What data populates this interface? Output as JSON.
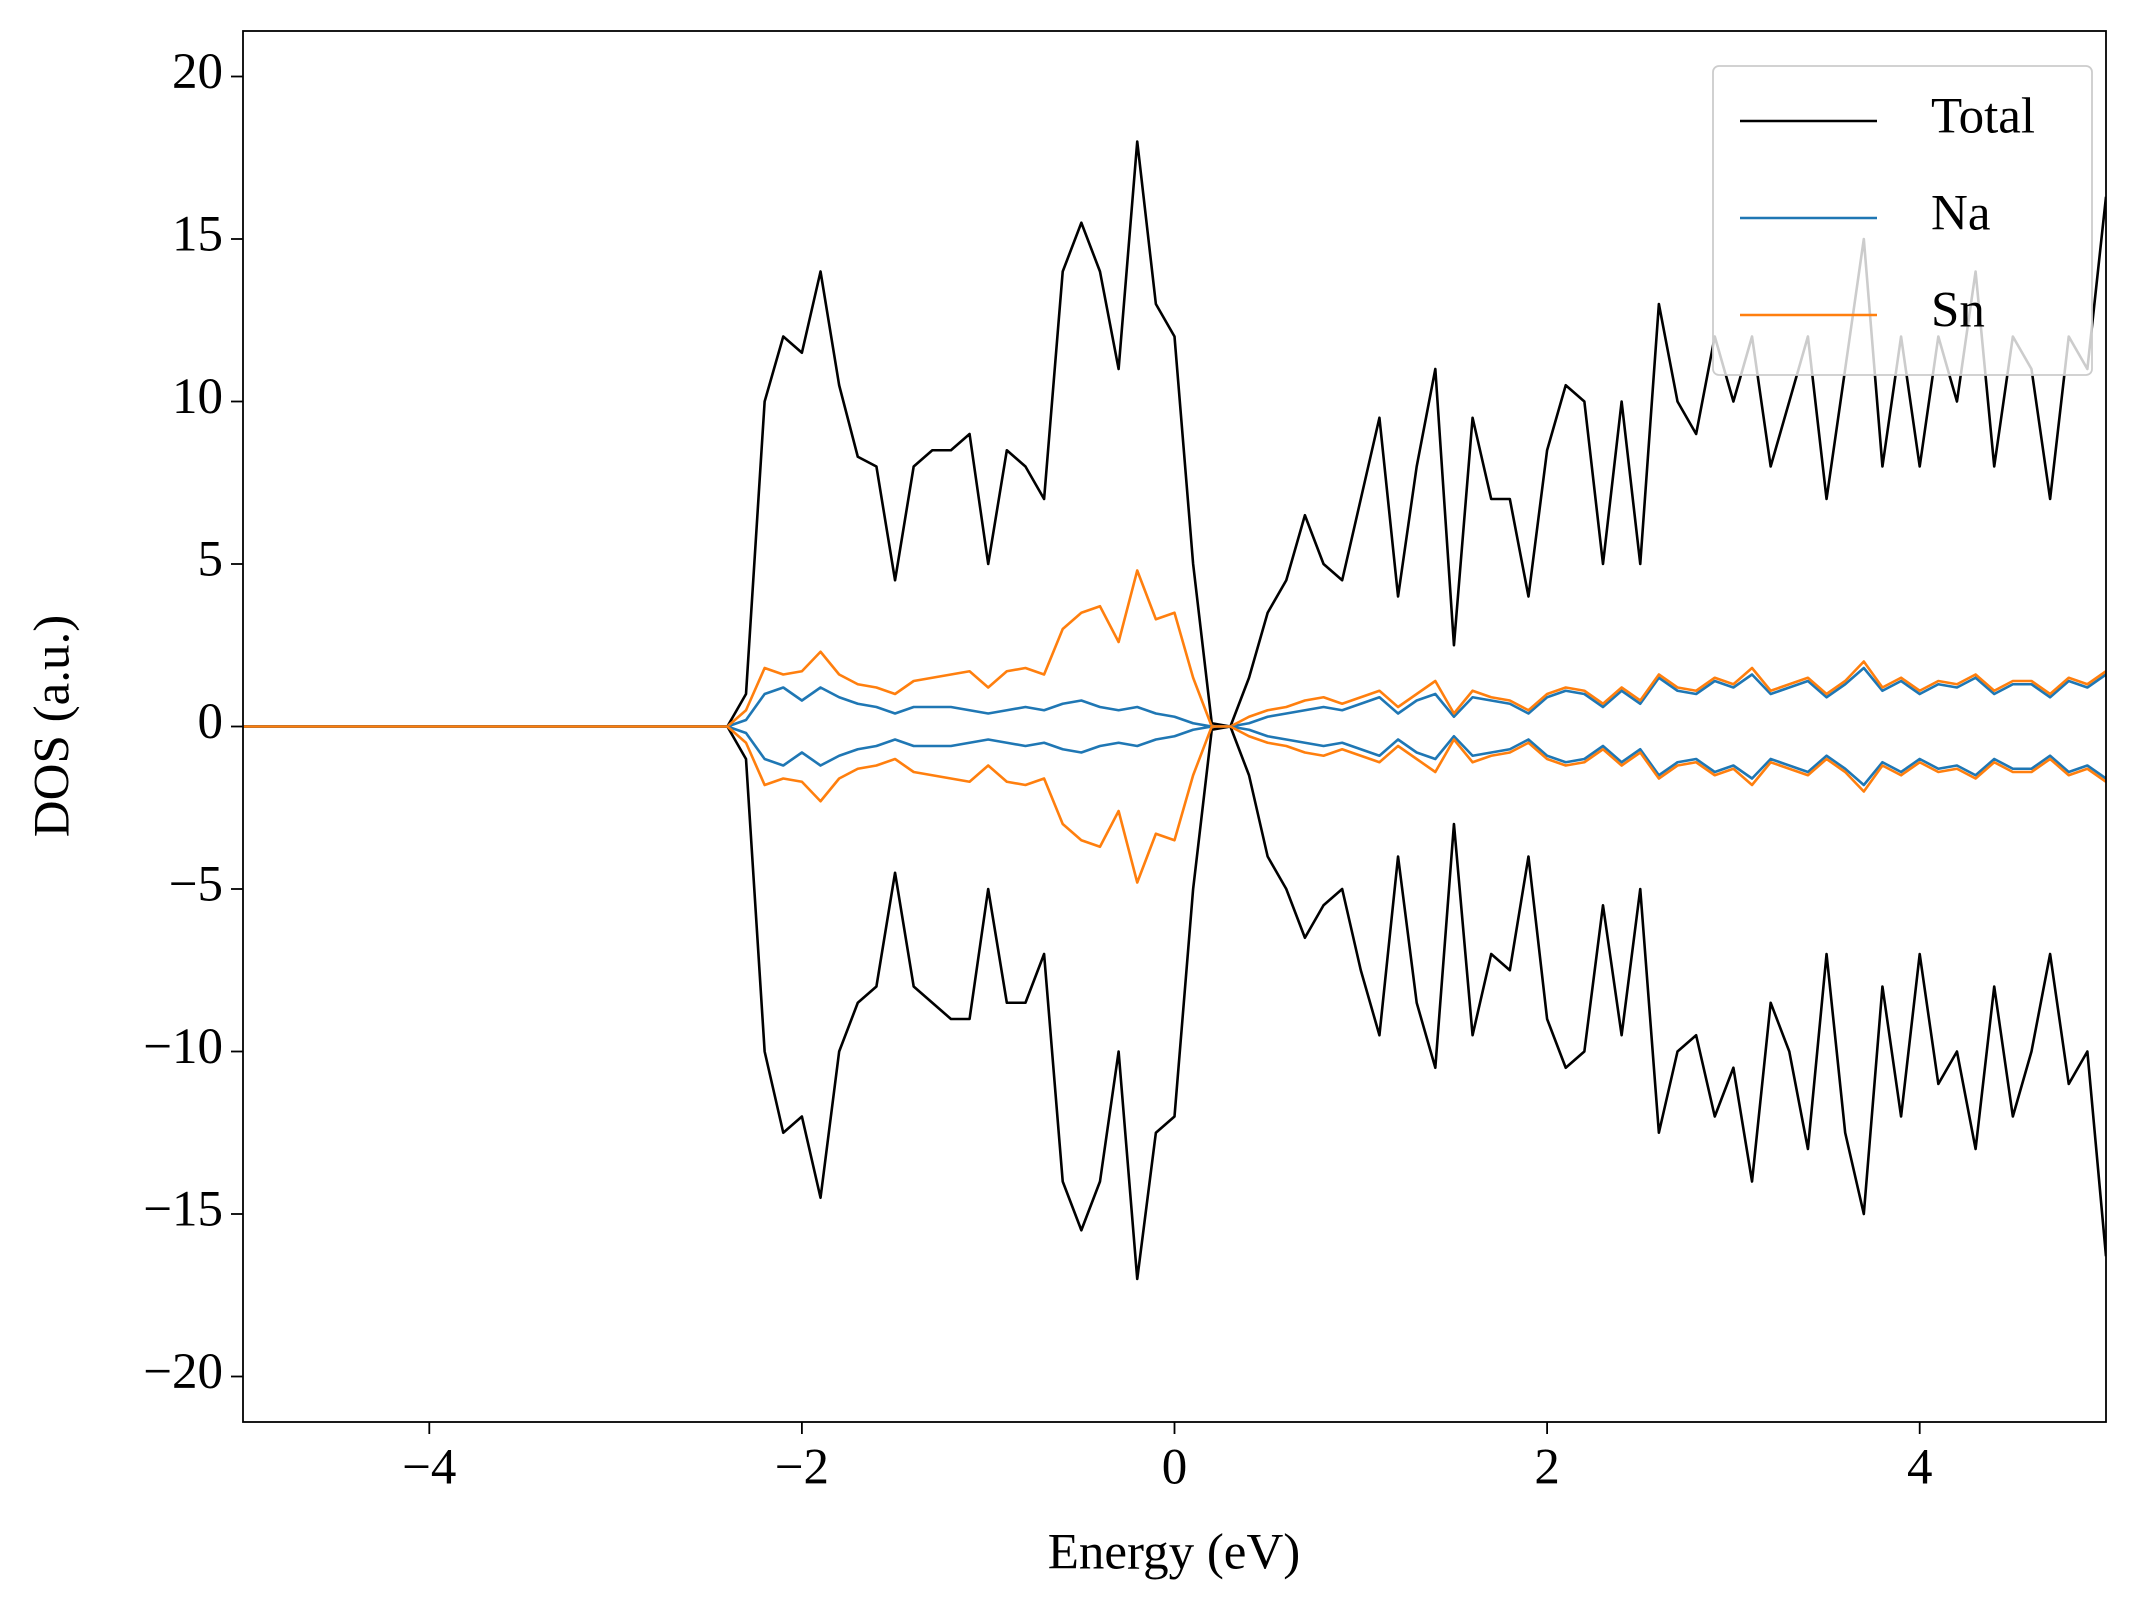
{
  "chart_data": {
    "type": "line",
    "x_label": "Energy (eV)",
    "y_label": "DOS (a.u.)",
    "xlim": [
      -5,
      5
    ],
    "ylim": [
      -21.4,
      21.4
    ],
    "xticks": [
      {
        "value": -4,
        "label": "−4"
      },
      {
        "value": -2,
        "label": "−2"
      },
      0,
      2,
      4
    ],
    "yticks": [
      {
        "value": -20,
        "label": "−20"
      },
      {
        "value": -15,
        "label": "−15"
      },
      {
        "value": -10,
        "label": "−10"
      },
      {
        "value": -5,
        "label": "−5"
      },
      0,
      5,
      10,
      15,
      20
    ],
    "legend": "upper right",
    "x": [
      -5,
      -4.9,
      -4.8,
      -4.7,
      -4.6,
      -4.5,
      -4.4,
      -4.3,
      -4.2,
      -4.1,
      -4,
      -3.9,
      -3.8,
      -3.7,
      -3.6,
      -3.5,
      -3.4,
      -3.3,
      -3.2,
      -3.1,
      -3,
      -2.9,
      -2.8,
      -2.7,
      -2.6,
      -2.5,
      -2.4,
      -2.3,
      -2.2,
      -2.1,
      -2,
      -1.9,
      -1.8,
      -1.7,
      -1.6,
      -1.5,
      -1.4,
      -1.3,
      -1.2,
      -1.1,
      -1,
      -0.9,
      -0.8,
      -0.7,
      -0.6,
      -0.5,
      -0.4,
      -0.3,
      -0.2,
      -0.1,
      0,
      0.1,
      0.2,
      0.3,
      0.4,
      0.5,
      0.6,
      0.7,
      0.8,
      0.9,
      1,
      1.1,
      1.2,
      1.3,
      1.4,
      1.5,
      1.6,
      1.7,
      1.8,
      1.9,
      2,
      2.1,
      2.2,
      2.3,
      2.4,
      2.5,
      2.6,
      2.7,
      2.8,
      2.9,
      3,
      3.1,
      3.2,
      3.3,
      3.4,
      3.5,
      3.6,
      3.7,
      3.8,
      3.9,
      4,
      4.1,
      4.2,
      4.3,
      4.4,
      4.5,
      4.6,
      4.7,
      4.8,
      4.9,
      5
    ],
    "series": [
      {
        "name": "Total",
        "color": "#000000",
        "values": [
          0,
          0,
          0,
          0,
          0,
          0,
          0,
          0,
          0,
          0,
          0,
          0,
          0,
          0,
          0,
          0,
          0,
          0,
          0,
          0,
          0,
          0,
          0,
          0,
          0,
          0,
          0,
          1,
          10,
          12,
          11.5,
          14,
          10.5,
          8.3,
          8,
          4.5,
          8,
          8.5,
          8.5,
          9,
          5,
          8.5,
          8,
          7,
          14,
          15.5,
          14,
          11,
          18,
          13,
          12,
          5,
          0.1,
          0,
          1.5,
          3.5,
          4.5,
          6.5,
          5,
          4.5,
          7,
          9.5,
          4,
          8,
          11,
          2.5,
          9.5,
          7,
          7,
          4,
          8.5,
          10.5,
          10,
          5,
          10,
          5,
          13,
          10,
          9,
          12,
          10,
          12,
          8,
          10,
          12,
          7,
          11,
          15,
          8,
          12,
          8,
          12,
          10,
          14,
          8,
          12,
          11,
          7,
          12,
          11,
          16.3
        ]
      },
      {
        "name": "Na",
        "color": "#1f77b4",
        "values": [
          0,
          0,
          0,
          0,
          0,
          0,
          0,
          0,
          0,
          0,
          0,
          0,
          0,
          0,
          0,
          0,
          0,
          0,
          0,
          0,
          0,
          0,
          0,
          0,
          0,
          0,
          0,
          0.2,
          1.0,
          1.2,
          0.8,
          1.2,
          0.9,
          0.7,
          0.6,
          0.4,
          0.6,
          0.6,
          0.6,
          0.5,
          0.4,
          0.5,
          0.6,
          0.5,
          0.7,
          0.8,
          0.6,
          0.5,
          0.6,
          0.4,
          0.3,
          0.1,
          0,
          0,
          0.1,
          0.3,
          0.4,
          0.5,
          0.6,
          0.5,
          0.7,
          0.9,
          0.4,
          0.8,
          1.0,
          0.3,
          0.9,
          0.8,
          0.7,
          0.4,
          0.9,
          1.1,
          1.0,
          0.6,
          1.1,
          0.7,
          1.5,
          1.1,
          1.0,
          1.4,
          1.2,
          1.6,
          1.0,
          1.2,
          1.4,
          0.9,
          1.3,
          1.8,
          1.1,
          1.4,
          1.0,
          1.3,
          1.2,
          1.5,
          1.0,
          1.3,
          1.3,
          0.9,
          1.4,
          1.2,
          1.6
        ]
      },
      {
        "name": "Sn",
        "color": "#ff7f0e",
        "values": [
          0,
          0,
          0,
          0,
          0,
          0,
          0,
          0,
          0,
          0,
          0,
          0,
          0,
          0,
          0,
          0,
          0,
          0,
          0,
          0,
          0,
          0,
          0,
          0,
          0,
          0,
          0,
          0.5,
          1.8,
          1.6,
          1.7,
          2.3,
          1.6,
          1.3,
          1.2,
          1.0,
          1.4,
          1.5,
          1.6,
          1.7,
          1.2,
          1.7,
          1.8,
          1.6,
          3.0,
          3.5,
          3.7,
          2.6,
          4.8,
          3.3,
          3.5,
          1.5,
          0,
          0,
          0.3,
          0.5,
          0.6,
          0.8,
          0.9,
          0.7,
          0.9,
          1.1,
          0.6,
          1.0,
          1.4,
          0.4,
          1.1,
          0.9,
          0.8,
          0.5,
          1.0,
          1.2,
          1.1,
          0.7,
          1.2,
          0.8,
          1.6,
          1.2,
          1.1,
          1.5,
          1.3,
          1.8,
          1.1,
          1.3,
          1.5,
          1.0,
          1.4,
          2.0,
          1.2,
          1.5,
          1.1,
          1.4,
          1.3,
          1.6,
          1.1,
          1.4,
          1.4,
          1.0,
          1.5,
          1.3,
          1.7
        ]
      },
      {
        "color": "#000000",
        "values": [
          0,
          0,
          0,
          0,
          0,
          0,
          0,
          0,
          0,
          0,
          0,
          0,
          0,
          0,
          0,
          0,
          0,
          0,
          0,
          0,
          0,
          0,
          0,
          0,
          0,
          0,
          0,
          -1,
          -10,
          -12.5,
          -12,
          -14.5,
          -10,
          -8.5,
          -8,
          -4.5,
          -8,
          -8.5,
          -9,
          -9,
          -5,
          -8.5,
          -8.5,
          -7,
          -14,
          -15.5,
          -14,
          -10,
          -17,
          -12.5,
          -12,
          -5,
          -0.1,
          0,
          -1.5,
          -4,
          -5,
          -6.5,
          -5.5,
          -5,
          -7.5,
          -9.5,
          -4,
          -8.5,
          -10.5,
          -3,
          -9.5,
          -7,
          -7.5,
          -4,
          -9,
          -10.5,
          -10,
          -5.5,
          -9.5,
          -5,
          -12.5,
          -10,
          -9.5,
          -12,
          -10.5,
          -14,
          -8.5,
          -10,
          -13,
          -7,
          -12.5,
          -15,
          -8,
          -12,
          -7,
          -11,
          -10,
          -13,
          -8,
          -12,
          -10,
          -7,
          -11,
          -10,
          -16.3
        ]
      },
      {
        "color": "#1f77b4",
        "values": [
          0,
          0,
          0,
          0,
          0,
          0,
          0,
          0,
          0,
          0,
          0,
          0,
          0,
          0,
          0,
          0,
          0,
          0,
          0,
          0,
          0,
          0,
          0,
          0,
          0,
          0,
          0,
          -0.2,
          -1.0,
          -1.2,
          -0.8,
          -1.2,
          -0.9,
          -0.7,
          -0.6,
          -0.4,
          -0.6,
          -0.6,
          -0.6,
          -0.5,
          -0.4,
          -0.5,
          -0.6,
          -0.5,
          -0.7,
          -0.8,
          -0.6,
          -0.5,
          -0.6,
          -0.4,
          -0.3,
          -0.1,
          0,
          0,
          -0.1,
          -0.3,
          -0.4,
          -0.5,
          -0.6,
          -0.5,
          -0.7,
          -0.9,
          -0.4,
          -0.8,
          -1.0,
          -0.3,
          -0.9,
          -0.8,
          -0.7,
          -0.4,
          -0.9,
          -1.1,
          -1.0,
          -0.6,
          -1.1,
          -0.7,
          -1.5,
          -1.1,
          -1.0,
          -1.4,
          -1.2,
          -1.6,
          -1.0,
          -1.2,
          -1.4,
          -0.9,
          -1.3,
          -1.8,
          -1.1,
          -1.4,
          -1.0,
          -1.3,
          -1.2,
          -1.5,
          -1.0,
          -1.3,
          -1.3,
          -0.9,
          -1.4,
          -1.2,
          -1.6
        ]
      },
      {
        "color": "#ff7f0e",
        "values": [
          0,
          0,
          0,
          0,
          0,
          0,
          0,
          0,
          0,
          0,
          0,
          0,
          0,
          0,
          0,
          0,
          0,
          0,
          0,
          0,
          0,
          0,
          0,
          0,
          0,
          0,
          0,
          -0.5,
          -1.8,
          -1.6,
          -1.7,
          -2.3,
          -1.6,
          -1.3,
          -1.2,
          -1.0,
          -1.4,
          -1.5,
          -1.6,
          -1.7,
          -1.2,
          -1.7,
          -1.8,
          -1.6,
          -3.0,
          -3.5,
          -3.7,
          -2.6,
          -4.8,
          -3.3,
          -3.5,
          -1.5,
          0,
          0,
          -0.3,
          -0.5,
          -0.6,
          -0.8,
          -0.9,
          -0.7,
          -0.9,
          -1.1,
          -0.6,
          -1.0,
          -1.4,
          -0.4,
          -1.1,
          -0.9,
          -0.8,
          -0.5,
          -1.0,
          -1.2,
          -1.1,
          -0.7,
          -1.2,
          -0.8,
          -1.6,
          -1.2,
          -1.1,
          -1.5,
          -1.3,
          -1.8,
          -1.1,
          -1.3,
          -1.5,
          -1.0,
          -1.4,
          -2.0,
          -1.2,
          -1.5,
          -1.1,
          -1.4,
          -1.3,
          -1.6,
          -1.1,
          -1.4,
          -1.4,
          -1.0,
          -1.5,
          -1.3,
          -1.7
        ]
      }
    ]
  }
}
